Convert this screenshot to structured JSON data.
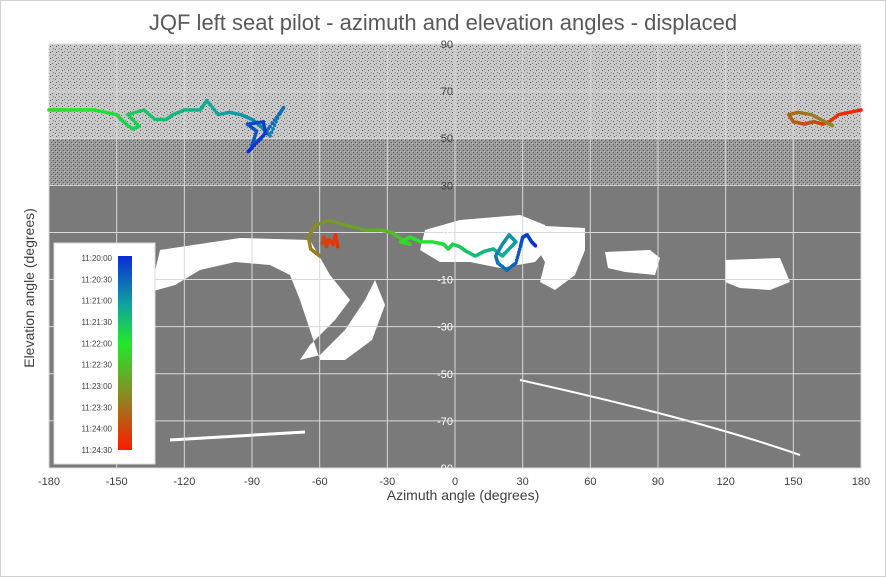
{
  "chart_data": {
    "type": "scatter",
    "title": "JQF left seat pilot - azimuth and elevation angles - displaced",
    "xlabel": "Azimuth angle (degrees)",
    "ylabel": "Elevation angle (degrees)",
    "xlim": [
      -180,
      180
    ],
    "ylim": [
      -90,
      90
    ],
    "x_ticks": [
      "-180",
      "-150",
      "-120",
      "-90",
      "-60",
      "-30",
      "0",
      "30",
      "60",
      "90",
      "120",
      "150",
      "180"
    ],
    "y_ticks": [
      "90",
      "70",
      "50",
      "30",
      "10",
      "-10",
      "-30",
      "-50",
      "-70",
      "-90"
    ],
    "grid": true,
    "legend": {
      "placement": "left",
      "type": "color-scale",
      "labels": [
        "11:20:00",
        "11:20:30",
        "11:21:00",
        "11:21:30",
        "11:22:00",
        "11:22:30",
        "11:23:00",
        "11:23:30",
        "11:24:00",
        "11:24:30"
      ],
      "colors": [
        "#0a2bd6",
        "#0fa3a0",
        "#22e82a",
        "#8a8a22",
        "#ff1a00"
      ]
    },
    "series": [
      {
        "points": [
          [
            -180,
            62
          ],
          [
            -175,
            62
          ],
          [
            -170,
            62
          ],
          [
            -165,
            62
          ],
          [
            -160,
            62
          ],
          [
            -155,
            61
          ],
          [
            -150,
            60
          ],
          [
            -147,
            57
          ],
          [
            -143,
            54
          ],
          [
            -140,
            55
          ],
          [
            -145,
            60
          ],
          [
            -138,
            62
          ],
          [
            -133,
            58
          ],
          [
            -128,
            58
          ],
          [
            -125,
            60
          ],
          [
            -120,
            62
          ],
          [
            -113,
            62
          ],
          [
            -110,
            66
          ],
          [
            -105,
            60
          ],
          [
            -100,
            61
          ],
          [
            -95,
            60
          ],
          [
            -90,
            58
          ],
          [
            -86,
            55
          ],
          [
            -82,
            51
          ],
          [
            -78,
            60
          ],
          [
            -76,
            63
          ],
          [
            -82,
            55
          ],
          [
            -86,
            50
          ],
          [
            -90,
            47
          ],
          [
            -88,
            53
          ],
          [
            -92,
            56
          ],
          [
            -85,
            57
          ],
          [
            -84,
            52
          ],
          [
            -90,
            46
          ],
          [
            -92,
            44
          ]
        ]
      },
      {
        "points": [
          [
            -60,
            0
          ],
          [
            -64,
            3
          ],
          [
            -65,
            8
          ],
          [
            -62,
            13
          ],
          [
            -56,
            15
          ],
          [
            -48,
            13
          ],
          [
            -40,
            11
          ],
          [
            -33,
            11
          ],
          [
            -28,
            10
          ],
          [
            -25,
            8
          ],
          [
            -22,
            6
          ],
          [
            -20,
            5
          ],
          [
            -24,
            6
          ],
          [
            -20,
            8
          ],
          [
            -15,
            6
          ],
          [
            -10,
            6
          ],
          [
            -5,
            5
          ],
          [
            -3,
            3
          ],
          [
            -1,
            5
          ],
          [
            2,
            4
          ],
          [
            5,
            2
          ],
          [
            9,
            0
          ],
          [
            13,
            2
          ],
          [
            17,
            3
          ],
          [
            21,
            0
          ],
          [
            24,
            3
          ],
          [
            27,
            6
          ],
          [
            24,
            9
          ],
          [
            21,
            5
          ],
          [
            18,
            0
          ],
          [
            19,
            -3
          ],
          [
            23,
            -6
          ],
          [
            27,
            -3
          ],
          [
            29,
            4
          ],
          [
            30,
            8
          ],
          [
            32,
            9
          ],
          [
            34,
            6
          ],
          [
            36,
            4
          ]
        ]
      },
      {
        "points": [
          [
            -52,
            4
          ],
          [
            -53,
            9
          ],
          [
            -54,
            5
          ],
          [
            -56,
            7
          ],
          [
            -57,
            4
          ],
          [
            -58,
            8
          ],
          [
            -59,
            5
          ]
        ]
      },
      {
        "points": [
          [
            180,
            62
          ],
          [
            175,
            61
          ],
          [
            170,
            60
          ],
          [
            166,
            57
          ],
          [
            163,
            56
          ],
          [
            159,
            57
          ],
          [
            155,
            56
          ],
          [
            150,
            57
          ],
          [
            148,
            60
          ],
          [
            152,
            61
          ],
          [
            158,
            60
          ],
          [
            164,
            57
          ],
          [
            168,
            55
          ]
        ]
      }
    ]
  }
}
